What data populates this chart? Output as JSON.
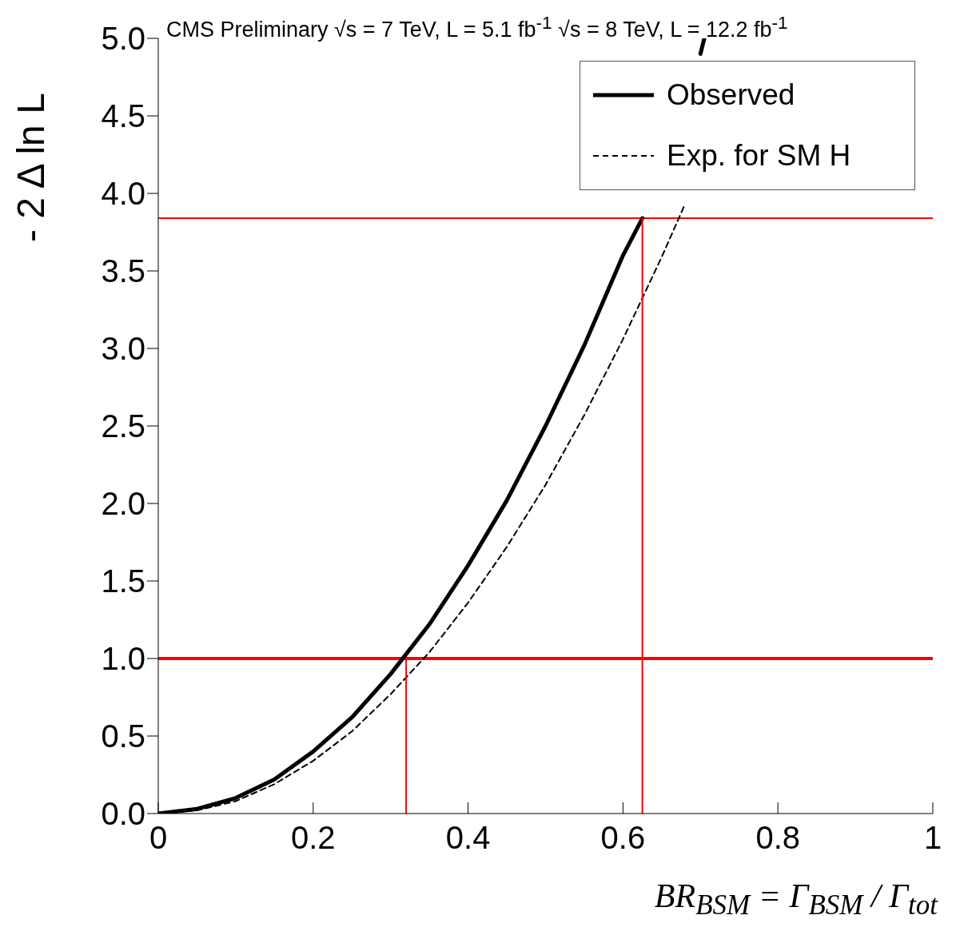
{
  "chart_data": {
    "type": "line",
    "title": "CMS Preliminary  √s = 7 TeV, L = 5.1 fb$^{-1}$  √s = 8 TeV, L = 12.2 fb$^{-1}$",
    "xlabel": "BR$_{BSM}$ = Γ$_{BSM}$ / Γ$_{tot}$",
    "ylabel": "- 2 Δ ln L",
    "xlim": [
      0,
      1
    ],
    "xticks": [
      0,
      0.2,
      0.4,
      0.6,
      0.8,
      1
    ],
    "ylim": [
      0,
      5
    ],
    "yticks": [
      {
        "value": 0,
        "label": "0.0"
      },
      0.5,
      {
        "value": 1,
        "label": "1.0"
      },
      1.5,
      {
        "value": 2,
        "label": "2.0"
      },
      2.5,
      {
        "value": 3,
        "label": "3.0"
      },
      3.5,
      {
        "value": 4,
        "label": "4.0"
      },
      4.5,
      {
        "value": 5,
        "label": "5.0"
      }
    ],
    "legend": "top right",
    "marker": "none",
    "series": [
      {
        "name": "Observed",
        "color": "#000000",
        "line_style": "solid",
        "x": [
          0,
          0.05,
          0.1,
          0.15,
          0.2,
          0.25,
          0.3,
          0.35,
          0.4,
          0.45,
          0.5,
          0.55,
          0.6,
          0.625,
          0.65,
          0.7,
          0.705
        ],
        "values": [
          0,
          0.03,
          0.1,
          0.22,
          0.4,
          0.62,
          0.9,
          1.22,
          1.6,
          2.02,
          2.5,
          3.02,
          3.6,
          3.84,
          null,
          4.9,
          5.0
        ]
      },
      {
        "name": "Exp. for SM H",
        "color": "#000000",
        "line_style": "dashed",
        "x": [
          0,
          0.05,
          0.1,
          0.15,
          0.2,
          0.25,
          0.3,
          0.35,
          0.4,
          0.45,
          0.5,
          0.55,
          0.6,
          0.65,
          0.68
        ],
        "values": [
          0,
          0.02,
          0.08,
          0.19,
          0.34,
          0.53,
          0.77,
          1.04,
          1.36,
          1.72,
          2.12,
          2.57,
          3.06,
          3.59,
          3.93
        ]
      },
      {
        "color": "#ff0000",
        "line_style": "solid",
        "x": [
          0.32,
          0.32
        ],
        "values": [
          0,
          1
        ]
      },
      {
        "color": "#ff0000",
        "line_style": "solid",
        "x": [
          0.625,
          0.625
        ],
        "values": [
          0,
          3.84
        ]
      }
    ],
    "ref_lines": [
      {
        "axis": "y",
        "value": 1,
        "color": "#ff0000"
      },
      {
        "axis": "y",
        "value": 3.84,
        "color": "#ff0000"
      }
    ]
  }
}
